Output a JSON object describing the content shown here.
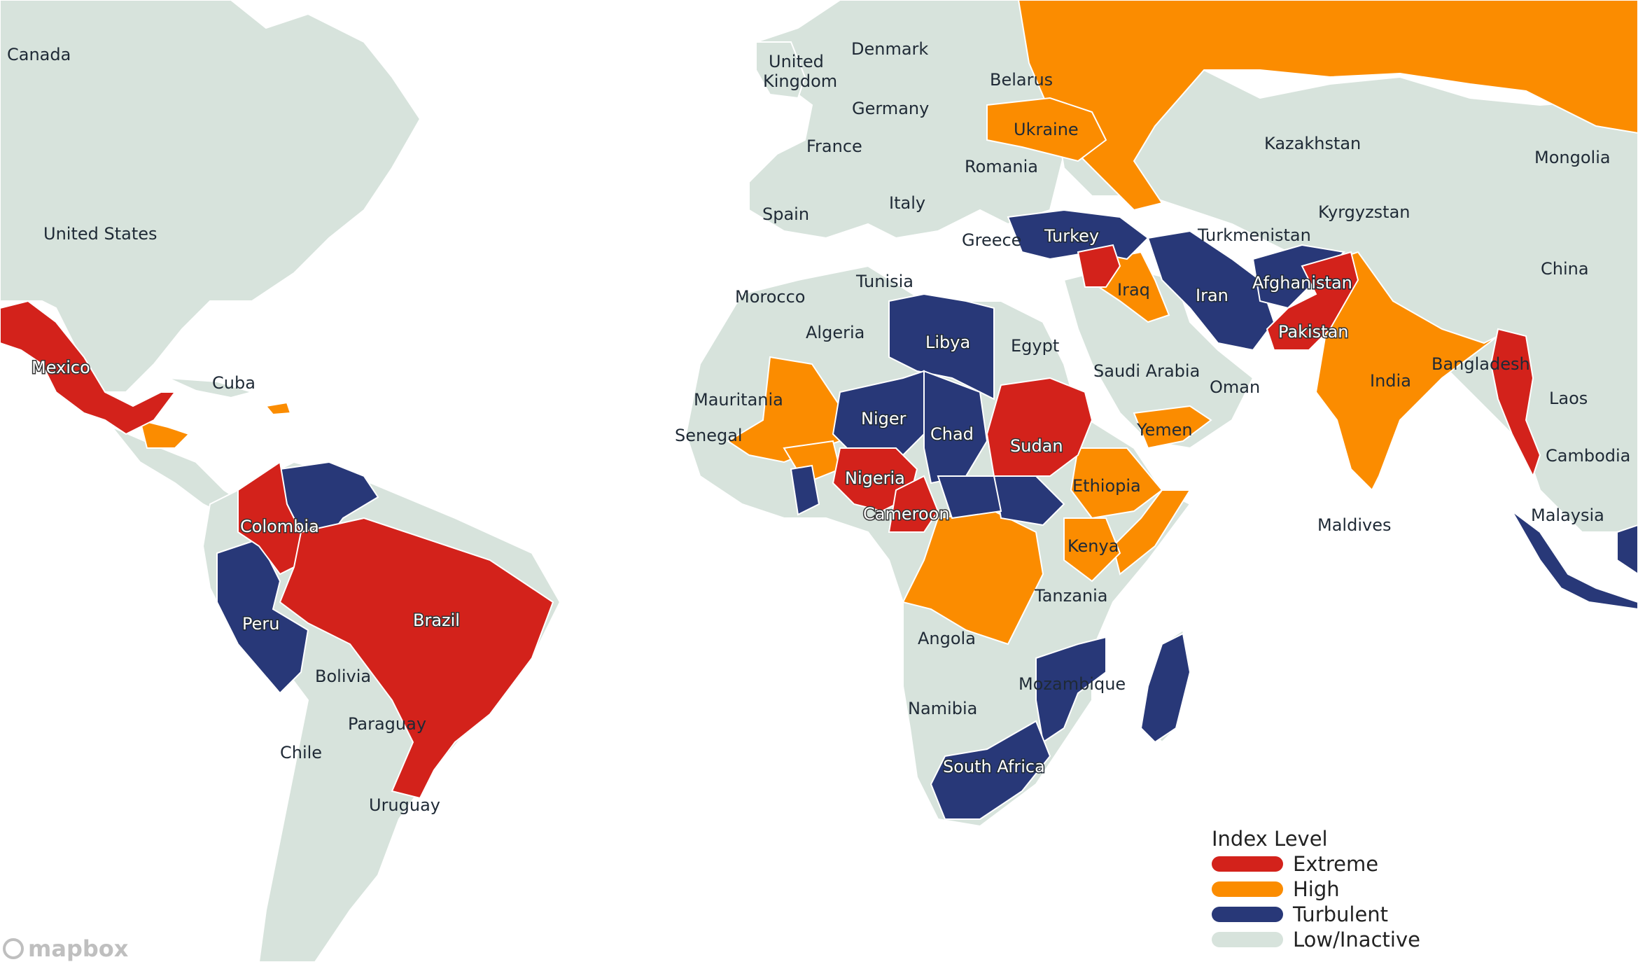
{
  "colors": {
    "water": "#ffffff",
    "land": "#d7e3dc",
    "border": "#ffffff",
    "extreme": "#d3221b",
    "high": "#fb8c00",
    "turbulent": "#283878"
  },
  "legend": {
    "title": "Index Level",
    "items": [
      {
        "label": "Extreme",
        "color": "#d3221b"
      },
      {
        "label": "High",
        "color": "#fb8c00"
      },
      {
        "label": "Turbulent",
        "color": "#283878"
      },
      {
        "label": "Low/Inactive",
        "color": "#d7e3dc"
      }
    ]
  },
  "attribution": "mapbox",
  "countries": {
    "canada": "Canada",
    "united_states": "United States",
    "mexico": "Mexico",
    "cuba": "Cuba",
    "colombia": "Colombia",
    "peru": "Peru",
    "brazil": "Brazil",
    "bolivia": "Bolivia",
    "paraguay": "Paraguay",
    "chile": "Chile",
    "uruguay": "Uruguay",
    "united_kingdom": "United Kingdom",
    "denmark": "Denmark",
    "belarus": "Belarus",
    "germany": "Germany",
    "france": "France",
    "ukraine": "Ukraine",
    "romania": "Romania",
    "spain": "Spain",
    "italy": "Italy",
    "greece": "Greece",
    "turkey": "Turkey",
    "morocco": "Morocco",
    "tunisia": "Tunisia",
    "algeria": "Algeria",
    "libya": "Libya",
    "egypt": "Egypt",
    "mauritania": "Mauritania",
    "senegal": "Senegal",
    "niger": "Niger",
    "chad": "Chad",
    "sudan": "Sudan",
    "nigeria": "Nigeria",
    "cameroon": "Cameroon",
    "ethiopia": "Ethiopia",
    "kenya": "Kenya",
    "tanzania": "Tanzania",
    "angola": "Angola",
    "namibia": "Namibia",
    "mozambique": "Mozambique",
    "south_africa": "South Africa",
    "kazakhstan": "Kazakhstan",
    "mongolia": "Mongolia",
    "turkmenistan": "Turkmenistan",
    "kyrgyzstan": "Kyrgyzstan",
    "china": "China",
    "iraq": "Iraq",
    "iran": "Iran",
    "afghanistan": "Afghanistan",
    "pakistan": "Pakistan",
    "saudi_arabia": "Saudi Arabia",
    "oman": "Oman",
    "yemen": "Yemen",
    "india": "India",
    "bangladesh": "Bangladesh",
    "laos": "Laos",
    "cambodia": "Cambodia",
    "maldives": "Maldives",
    "malaysia": "Malaysia"
  }
}
